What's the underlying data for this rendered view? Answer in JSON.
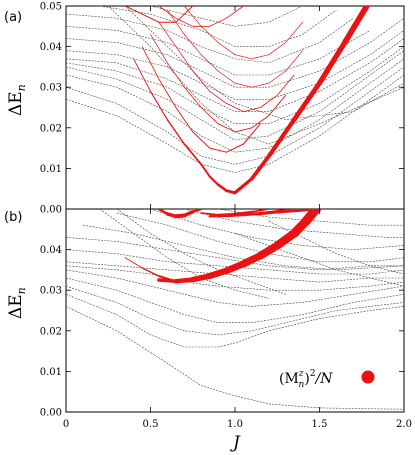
{
  "chart_data": [
    {
      "type": "line",
      "panel_label": "(a)",
      "ylabel_main": "ΔE",
      "ylabel_sub": "n",
      "xlim": [
        0,
        2.0
      ],
      "ylim": [
        0,
        0.05
      ],
      "yticks": [
        "0.00",
        "0.01",
        "0.02",
        "0.03",
        "0.04",
        "0.05"
      ],
      "xticks": [],
      "grey_series": [
        {
          "x": [
            0,
            0.3,
            0.6,
            0.8,
            1.0,
            1.2,
            1.5,
            1.8,
            2.0
          ],
          "y": [
            0.027,
            0.023,
            0.016,
            0.011,
            0.009,
            0.011,
            0.018,
            0.027,
            0.033
          ]
        },
        {
          "x": [
            0,
            0.3,
            0.6,
            0.8,
            1.0,
            1.2,
            1.5,
            1.8,
            2.0
          ],
          "y": [
            0.03,
            0.026,
            0.019,
            0.013,
            0.011,
            0.013,
            0.02,
            0.029,
            0.035
          ]
        },
        {
          "x": [
            0,
            0.3,
            0.6,
            0.8,
            1.0,
            1.2,
            1.5,
            1.8,
            2.0
          ],
          "y": [
            0.033,
            0.03,
            0.024,
            0.018,
            0.014,
            0.015,
            0.022,
            0.031,
            0.037
          ]
        },
        {
          "x": [
            0,
            0.3,
            0.6,
            0.8,
            1.0,
            1.2,
            1.5,
            1.8,
            2.0
          ],
          "y": [
            0.035,
            0.032,
            0.027,
            0.022,
            0.017,
            0.018,
            0.024,
            0.033,
            0.039
          ]
        },
        {
          "x": [
            0,
            0.3,
            0.6,
            0.8,
            1.0,
            1.2,
            1.5,
            1.8,
            2.0
          ],
          "y": [
            0.036,
            0.034,
            0.03,
            0.025,
            0.021,
            0.021,
            0.026,
            0.034,
            0.04
          ]
        },
        {
          "x": [
            0,
            0.3,
            0.6,
            0.8,
            1.0,
            1.2,
            1.5,
            1.8,
            2.0
          ],
          "y": [
            0.037,
            0.036,
            0.032,
            0.028,
            0.024,
            0.024,
            0.029,
            0.036,
            0.042
          ]
        },
        {
          "x": [
            0,
            0.3,
            0.6,
            0.8,
            1.0,
            1.2,
            1.5,
            1.8,
            2.0
          ],
          "y": [
            0.039,
            0.038,
            0.035,
            0.031,
            0.027,
            0.027,
            0.031,
            0.038,
            0.044
          ]
        },
        {
          "x": [
            0,
            0.3,
            0.6,
            0.8,
            1.0,
            1.2,
            1.5,
            1.8,
            2.0
          ],
          "y": [
            0.042,
            0.041,
            0.038,
            0.034,
            0.03,
            0.03,
            0.034,
            0.041,
            0.047
          ]
        },
        {
          "x": [
            0,
            0.3,
            0.6,
            0.8,
            1.0,
            1.2,
            1.5,
            1.8
          ],
          "y": [
            0.045,
            0.044,
            0.041,
            0.037,
            0.033,
            0.033,
            0.037,
            0.044
          ]
        },
        {
          "x": [
            0,
            0.3,
            0.6,
            0.8,
            1.0,
            1.2,
            1.5,
            1.7
          ],
          "y": [
            0.048,
            0.047,
            0.044,
            0.04,
            0.037,
            0.036,
            0.041,
            0.047
          ]
        },
        {
          "x": [
            0.2,
            0.5,
            0.8,
            1.0,
            1.2,
            1.4,
            1.6
          ],
          "y": [
            0.05,
            0.048,
            0.044,
            0.04,
            0.04,
            0.043,
            0.049
          ]
        },
        {
          "x": [
            0.5,
            0.8,
            1.0,
            1.2,
            1.4
          ],
          "y": [
            0.05,
            0.047,
            0.045,
            0.046,
            0.05
          ]
        },
        {
          "x": [
            0.25,
            0.5,
            0.8,
            1.0,
            1.2,
            1.5,
            2.0
          ],
          "y": [
            0.05,
            0.04,
            0.026,
            0.019,
            0.016,
            0.021,
            0.03
          ]
        },
        {
          "x": [
            0.35,
            0.6,
            0.8,
            1.0,
            1.3,
            1.7,
            2.0
          ],
          "y": [
            0.05,
            0.04,
            0.032,
            0.026,
            0.022,
            0.024,
            0.031
          ]
        }
      ],
      "red_series": [
        {
          "x": [
            0.8,
            0.85,
            0.9,
            0.95,
            1.0,
            1.1,
            1.2,
            1.35,
            1.5,
            1.65,
            1.78
          ],
          "y": [
            0.011,
            0.008,
            0.006,
            0.0045,
            0.004,
            0.0075,
            0.013,
            0.022,
            0.031,
            0.041,
            0.05
          ],
          "w": [
            1,
            1.5,
            2,
            2.5,
            3,
            3.5,
            4,
            4.5,
            5,
            5.5,
            6
          ]
        },
        {
          "x": [
            0.4,
            0.5,
            0.6,
            0.7,
            0.8,
            0.85,
            0.9,
            0.95,
            1.0
          ],
          "y": [
            0.037,
            0.029,
            0.022,
            0.016,
            0.011,
            0.008,
            0.006,
            0.0045,
            0.004
          ],
          "w": [
            0.8,
            1,
            1.2,
            1.5,
            1.8,
            2,
            2.2,
            2.6,
            3
          ]
        },
        {
          "x": [
            0.45,
            0.55,
            0.65,
            0.75,
            0.85,
            0.95,
            1.05,
            1.15
          ],
          "y": [
            0.04,
            0.032,
            0.025,
            0.019,
            0.015,
            0.014,
            0.016,
            0.021
          ],
          "w": [
            0.8,
            0.8,
            0.9,
            0.9,
            1,
            1,
            1,
            1
          ]
        },
        {
          "x": [
            0.5,
            0.6,
            0.7,
            0.8,
            0.9,
            1.0,
            1.1,
            1.2,
            1.3
          ],
          "y": [
            0.043,
            0.036,
            0.03,
            0.025,
            0.021,
            0.019,
            0.02,
            0.023,
            0.028
          ],
          "w": [
            0.7,
            0.7,
            0.8,
            0.8,
            0.9,
            0.9,
            0.9,
            0.9,
            0.9
          ]
        },
        {
          "x": [
            0.55,
            0.65,
            0.75,
            0.85,
            0.95,
            1.05,
            1.15,
            1.25,
            1.35
          ],
          "y": [
            0.046,
            0.04,
            0.034,
            0.029,
            0.026,
            0.024,
            0.025,
            0.028,
            0.033
          ],
          "w": [
            0.7,
            0.7,
            0.7,
            0.8,
            0.8,
            0.8,
            0.8,
            0.8,
            0.8
          ]
        },
        {
          "x": [
            0.6,
            0.7,
            0.8,
            0.9,
            1.0,
            1.1,
            1.2,
            1.3,
            1.4
          ],
          "y": [
            0.049,
            0.043,
            0.038,
            0.034,
            0.031,
            0.03,
            0.031,
            0.034,
            0.039
          ],
          "w": [
            0.7,
            0.7,
            0.7,
            0.7,
            0.7,
            0.7,
            0.7,
            0.7,
            0.7
          ]
        },
        {
          "x": [
            0.7,
            0.8,
            0.9,
            1.0,
            1.1,
            1.2,
            1.3,
            1.4
          ],
          "y": [
            0.05,
            0.045,
            0.041,
            0.038,
            0.037,
            0.038,
            0.041,
            0.046
          ],
          "w": [
            0.7,
            0.7,
            0.7,
            0.7,
            0.7,
            0.7,
            0.7,
            0.7
          ]
        },
        {
          "x": [
            0.35,
            0.45,
            0.55,
            0.65,
            0.75
          ],
          "y": [
            0.05,
            0.048,
            0.046,
            0.046,
            0.05
          ],
          "w": [
            1,
            1,
            1,
            1,
            1
          ]
        },
        {
          "x": [
            0.55,
            0.65,
            0.75,
            0.85,
            0.95,
            1.05
          ],
          "y": [
            0.05,
            0.047,
            0.045,
            0.045,
            0.047,
            0.05
          ],
          "w": [
            0.8,
            0.8,
            0.8,
            0.8,
            0.8,
            0.8
          ]
        }
      ]
    },
    {
      "type": "line",
      "panel_label": "(b)",
      "ylabel_main": "ΔE",
      "ylabel_sub": "n",
      "xlabel": "J",
      "xlim": [
        0,
        2.0
      ],
      "ylim": [
        0,
        0.05
      ],
      "yticks": [
        "0.00",
        "0.01",
        "0.02",
        "0.03",
        "0.04"
      ],
      "xticks": [
        "0",
        "0.5",
        "1.0",
        "1.5",
        "2.0"
      ],
      "legend_label": "(M",
      "legend_sup": "z",
      "legend_sub": "n",
      "legend_tail": ")",
      "legend_sup2": "2",
      "legend_tail2": "/N",
      "grey_series": [
        {
          "x": [
            0,
            0.3,
            0.6,
            0.8,
            1.0,
            1.2,
            1.5,
            1.8,
            2.0
          ],
          "y": [
            0.026,
            0.02,
            0.012,
            0.0065,
            0.004,
            0.002,
            0.001,
            0.0008,
            0.0007
          ]
        },
        {
          "x": [
            0,
            0.3,
            0.5,
            0.7,
            0.9,
            1.0,
            1.2,
            1.5,
            1.8,
            2.0
          ],
          "y": [
            0.029,
            0.024,
            0.019,
            0.016,
            0.016,
            0.017,
            0.02,
            0.023,
            0.025,
            0.026
          ]
        },
        {
          "x": [
            0,
            0.3,
            0.5,
            0.7,
            0.9,
            1.1,
            1.3,
            1.6,
            2.0
          ],
          "y": [
            0.031,
            0.027,
            0.023,
            0.02,
            0.019,
            0.02,
            0.022,
            0.025,
            0.027
          ]
        },
        {
          "x": [
            0,
            0.3,
            0.5,
            0.7,
            0.9,
            1.1,
            1.4,
            1.7,
            2.0
          ],
          "y": [
            0.033,
            0.03,
            0.027,
            0.024,
            0.022,
            0.022,
            0.024,
            0.027,
            0.029
          ]
        },
        {
          "x": [
            0,
            0.3,
            0.5,
            0.7,
            0.9,
            1.1,
            1.4,
            1.7,
            2.0
          ],
          "y": [
            0.035,
            0.033,
            0.031,
            0.029,
            0.027,
            0.026,
            0.027,
            0.029,
            0.031
          ]
        },
        {
          "x": [
            0,
            0.3,
            0.5,
            0.7,
            0.9,
            1.2,
            1.5,
            1.8,
            2.0
          ],
          "y": [
            0.036,
            0.035,
            0.034,
            0.032,
            0.031,
            0.03,
            0.03,
            0.031,
            0.032
          ]
        },
        {
          "x": [
            0,
            0.3,
            0.6,
            0.9,
            1.2,
            1.5,
            1.8,
            2.0
          ],
          "y": [
            0.037,
            0.036,
            0.035,
            0.034,
            0.033,
            0.032,
            0.033,
            0.033
          ]
        },
        {
          "x": [
            0,
            0.3,
            0.6,
            0.9,
            1.2,
            1.5,
            1.8,
            2.0
          ],
          "y": [
            0.04,
            0.039,
            0.037,
            0.036,
            0.035,
            0.034,
            0.034,
            0.035
          ]
        },
        {
          "x": [
            0,
            0.3,
            0.6,
            0.9,
            1.2,
            1.5,
            1.8,
            2.0
          ],
          "y": [
            0.043,
            0.042,
            0.04,
            0.038,
            0.036,
            0.035,
            0.036,
            0.036
          ]
        },
        {
          "x": [
            0.1,
            0.4,
            0.7,
            1.0,
            1.3,
            1.6,
            2.0
          ],
          "y": [
            0.046,
            0.044,
            0.041,
            0.038,
            0.036,
            0.035,
            0.036
          ]
        },
        {
          "x": [
            0.3,
            0.6,
            0.9,
            1.2,
            1.5,
            1.8,
            2.0
          ],
          "y": [
            0.049,
            0.046,
            0.042,
            0.039,
            0.037,
            0.037,
            0.038
          ]
        },
        {
          "x": [
            0.5,
            0.8,
            1.1,
            1.4,
            1.7,
            2.0
          ],
          "y": [
            0.05,
            0.046,
            0.043,
            0.041,
            0.04,
            0.041
          ]
        },
        {
          "x": [
            0.7,
            1.0,
            1.3,
            1.6,
            1.9,
            2.0
          ],
          "y": [
            0.05,
            0.047,
            0.045,
            0.044,
            0.043,
            0.043
          ]
        },
        {
          "x": [
            0.9,
            1.2,
            1.5,
            1.8,
            2.0
          ],
          "y": [
            0.05,
            0.048,
            0.047,
            0.046,
            0.046
          ]
        },
        {
          "x": [
            0.2,
            0.4,
            0.6,
            0.8,
            1.0,
            1.2
          ],
          "y": [
            0.05,
            0.044,
            0.038,
            0.033,
            0.03,
            0.028
          ]
        },
        {
          "x": [
            0.3,
            0.5,
            0.7,
            0.9,
            1.1,
            1.3
          ],
          "y": [
            0.05,
            0.044,
            0.039,
            0.035,
            0.032,
            0.029
          ]
        },
        {
          "x": [
            1.0,
            1.2,
            1.4,
            1.6,
            1.8,
            2.0
          ],
          "y": [
            0.044,
            0.041,
            0.038,
            0.035,
            0.033,
            0.031
          ]
        },
        {
          "x": [
            1.2,
            1.4,
            1.6,
            1.8,
            2.0
          ],
          "y": [
            0.047,
            0.043,
            0.039,
            0.036,
            0.034
          ]
        }
      ],
      "red_series": [
        {
          "x": [
            0.55,
            0.65,
            0.75,
            0.85,
            0.95,
            1.05,
            1.15,
            1.25,
            1.35,
            1.42,
            1.48
          ],
          "y": [
            0.0325,
            0.0322,
            0.0326,
            0.0335,
            0.0348,
            0.0365,
            0.0385,
            0.041,
            0.044,
            0.047,
            0.05
          ],
          "w": [
            3,
            4,
            5,
            6,
            6.5,
            7,
            7.5,
            8,
            8.5,
            9,
            9.5
          ]
        },
        {
          "x": [
            0.35,
            0.45,
            0.55,
            0.62
          ],
          "y": [
            0.038,
            0.0355,
            0.0335,
            0.0325
          ],
          "w": [
            0.8,
            1,
            1.5,
            2.5
          ]
        },
        {
          "x": [
            0.55,
            0.6,
            0.65,
            0.7,
            0.75,
            0.8
          ],
          "y": [
            0.05,
            0.0488,
            0.0482,
            0.0484,
            0.0493,
            0.05
          ],
          "w": [
            2,
            3,
            4,
            4,
            3,
            2
          ]
        },
        {
          "x": [
            0.85,
            0.95,
            1.05,
            1.15,
            1.25,
            1.35,
            1.45
          ],
          "y": [
            0.0482,
            0.0483,
            0.0486,
            0.0489,
            0.0493,
            0.0497,
            0.05
          ],
          "w": [
            2,
            2.5,
            3,
            3,
            3.5,
            4,
            4
          ]
        },
        {
          "x": [
            0.8,
            0.9,
            1.0,
            1.1,
            1.2
          ],
          "y": [
            0.049,
            0.0486,
            0.0488,
            0.0493,
            0.05
          ],
          "w": [
            1.5,
            2,
            2,
            2,
            1.5
          ]
        }
      ],
      "red_dots": [
        {
          "x": 1.48,
          "y": 0.05,
          "r": 5
        }
      ]
    }
  ]
}
